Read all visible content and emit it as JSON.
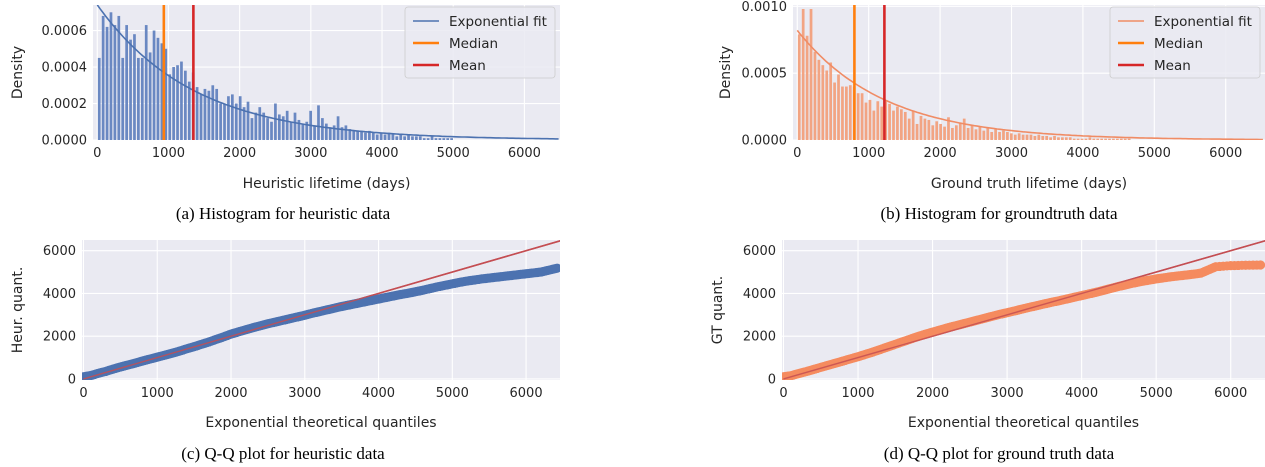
{
  "chart_data": [
    {
      "type": "bar",
      "caption": "(a) Histogram for heuristic data",
      "xlabel": "Heuristic lifetime (days)",
      "ylabel": "Density",
      "xlim": [
        -60,
        6500
      ],
      "ylim": [
        0,
        0.00074
      ],
      "xticks": [
        0,
        1000,
        2000,
        3000,
        4000,
        5000,
        6000
      ],
      "xtick_labels": [
        "0",
        "1000",
        "2000",
        "3000",
        "4000",
        "5000",
        "6000"
      ],
      "yticks": [
        0,
        0.0002,
        0.0004,
        0.0006
      ],
      "ytick_labels": [
        "0.0000",
        "0.0002",
        "0.0004",
        "0.0006"
      ],
      "grid": true,
      "legend_position": "top-right",
      "bar_color": "#6a88c2",
      "bin_width": 55,
      "bin_start": 0,
      "values": [
        0.00045,
        0.00068,
        0.00062,
        0.0007,
        0.00063,
        0.00068,
        0.00045,
        0.00063,
        0.00055,
        0.00058,
        0.00045,
        0.00045,
        0.00063,
        0.00048,
        0.0006,
        0.00056,
        0.00053,
        0.0005,
        0.00036,
        0.0004,
        0.00041,
        0.00043,
        0.00038,
        0.00032,
        0.00037,
        0.00029,
        0.00025,
        0.00028,
        0.00027,
        0.0003,
        0.00028,
        0.0002,
        0.0002,
        0.00024,
        0.00025,
        0.0002,
        0.00024,
        0.00018,
        0.00021,
        0.00012,
        0.00015,
        0.00018,
        0.00015,
        0.00012,
        0.0001,
        0.0002,
        0.00014,
        0.00013,
        0.00016,
        0.0001,
        0.00015,
        0.00011,
        9e-05,
        0.0001,
        0.00016,
        8e-05,
        0.00019,
        0.00012,
        9e-05,
        7e-05,
        8e-05,
        0.00013,
        7e-05,
        8e-05,
        6e-05,
        5e-05,
        5e-05,
        5e-05,
        4e-05,
        5e-05,
        4e-05,
        3e-05,
        4e-05,
        3e-05,
        4e-05,
        3e-05,
        2e-05,
        3e-05,
        2e-05,
        3e-05,
        2e-05,
        2e-05,
        2e-05,
        1e-05,
        1e-05,
        2e-05,
        1e-05,
        1e-05,
        1e-05,
        1e-05,
        1e-05
      ],
      "series": [
        {
          "name": "Exponential fit",
          "kind": "exp_fit",
          "scale": 1350,
          "color": "#4c72b0"
        },
        {
          "name": "Median",
          "kind": "vline",
          "x": 935,
          "color": "#ff7f0e"
        },
        {
          "name": "Mean",
          "kind": "vline",
          "x": 1350,
          "color": "#d62728"
        }
      ]
    },
    {
      "type": "bar",
      "caption": "(b) Histogram for groundtruth data",
      "xlabel": "Ground truth lifetime (days)",
      "ylabel": "Density",
      "xlim": [
        -60,
        6550
      ],
      "ylim": [
        0,
        0.00101
      ],
      "xticks": [
        0,
        1000,
        2000,
        3000,
        4000,
        5000,
        6000
      ],
      "xtick_labels": [
        "0",
        "1000",
        "2000",
        "3000",
        "4000",
        "5000",
        "6000"
      ],
      "yticks": [
        0,
        0.0005,
        0.001
      ],
      "ytick_labels": [
        "0.0000",
        "0.0005",
        "0.0010"
      ],
      "grid": true,
      "legend_position": "top-right",
      "bar_color": "#f2a483",
      "bin_width": 55,
      "bin_start": 0,
      "values": [
        0.00079,
        0.00098,
        0.00078,
        0.00098,
        0.00066,
        0.0006,
        0.00056,
        0.00052,
        0.00058,
        0.00043,
        0.00049,
        0.0004,
        0.0004,
        0.00041,
        0.0004,
        0.00035,
        0.00035,
        0.00028,
        0.0003,
        0.00022,
        0.00029,
        0.00025,
        0.00029,
        0.00027,
        0.00022,
        0.00025,
        0.00023,
        0.00021,
        0.00016,
        0.00022,
        0.00012,
        0.00018,
        0.00016,
        0.00015,
        0.00011,
        0.00014,
        0.00012,
        0.0001,
        0.00017,
        9e-05,
        0.00011,
        0.00013,
        0.00016,
        9e-05,
        0.00011,
        8e-05,
        0.0001,
        7e-05,
        9e-05,
        6e-05,
        8e-05,
        6e-05,
        7e-05,
        6e-05,
        5e-05,
        4e-05,
        5e-05,
        4e-05,
        4e-05,
        4e-05,
        3e-05,
        4e-05,
        3e-05,
        3e-05,
        2e-05,
        3e-05,
        2e-05,
        2e-05,
        2e-05,
        2e-05,
        1e-05,
        1e-05,
        1e-05,
        1e-05,
        2e-05,
        1e-05,
        1e-05,
        1e-05,
        1e-05,
        1e-05,
        1e-05,
        1e-05,
        1e-05,
        1e-05,
        1e-05
      ],
      "series": [
        {
          "name": "Exponential fit",
          "kind": "exp_fit",
          "scale": 1220,
          "color": "#f08c65"
        },
        {
          "name": "Median",
          "kind": "vline",
          "x": 800,
          "color": "#ff7f0e"
        },
        {
          "name": "Mean",
          "kind": "vline",
          "x": 1220,
          "color": "#d62728"
        }
      ]
    },
    {
      "type": "scatter",
      "caption": "(c) Q-Q plot for heuristic data",
      "xlabel": "Exponential theoretical quantiles",
      "ylabel": "Heur. quant.",
      "xlim": [
        -20,
        6460
      ],
      "ylim": [
        -50,
        6500
      ],
      "xticks": [
        0,
        1000,
        2000,
        3000,
        4000,
        5000,
        6000
      ],
      "xtick_labels": [
        "0",
        "1000",
        "2000",
        "3000",
        "4000",
        "5000",
        "6000"
      ],
      "yticks": [
        0,
        2000,
        4000,
        6000
      ],
      "ytick_labels": [
        "0",
        "2000",
        "4000",
        "6000"
      ],
      "grid": true,
      "point_color": "#4c72b0",
      "line_color": "#c44e52",
      "reference_line": [
        [
          0,
          0
        ],
        [
          6500,
          6500
        ]
      ],
      "points": [
        [
          0,
          100
        ],
        [
          100,
          160
        ],
        [
          200,
          260
        ],
        [
          300,
          350
        ],
        [
          400,
          460
        ],
        [
          500,
          560
        ],
        [
          600,
          650
        ],
        [
          700,
          740
        ],
        [
          800,
          840
        ],
        [
          900,
          930
        ],
        [
          1000,
          1020
        ],
        [
          1100,
          1110
        ],
        [
          1200,
          1200
        ],
        [
          1300,
          1300
        ],
        [
          1400,
          1410
        ],
        [
          1500,
          1510
        ],
        [
          1600,
          1620
        ],
        [
          1700,
          1730
        ],
        [
          1800,
          1850
        ],
        [
          1900,
          1970
        ],
        [
          2000,
          2100
        ],
        [
          2100,
          2200
        ],
        [
          2200,
          2300
        ],
        [
          2300,
          2400
        ],
        [
          2400,
          2490
        ],
        [
          2500,
          2580
        ],
        [
          2600,
          2660
        ],
        [
          2700,
          2740
        ],
        [
          2800,
          2820
        ],
        [
          2900,
          2900
        ],
        [
          3000,
          2980
        ],
        [
          3100,
          3070
        ],
        [
          3200,
          3150
        ],
        [
          3300,
          3230
        ],
        [
          3400,
          3310
        ],
        [
          3500,
          3390
        ],
        [
          3600,
          3460
        ],
        [
          3700,
          3530
        ],
        [
          3800,
          3600
        ],
        [
          3900,
          3670
        ],
        [
          4000,
          3740
        ],
        [
          4100,
          3810
        ],
        [
          4200,
          3880
        ],
        [
          4300,
          3950
        ],
        [
          4400,
          4010
        ],
        [
          4500,
          4080
        ],
        [
          4600,
          4150
        ],
        [
          4700,
          4230
        ],
        [
          4800,
          4310
        ],
        [
          4900,
          4380
        ],
        [
          5000,
          4450
        ],
        [
          5100,
          4520
        ],
        [
          5200,
          4580
        ],
        [
          5300,
          4630
        ],
        [
          5400,
          4680
        ],
        [
          5500,
          4720
        ],
        [
          5600,
          4760
        ],
        [
          5700,
          4800
        ],
        [
          5800,
          4840
        ],
        [
          5900,
          4880
        ],
        [
          6000,
          4920
        ],
        [
          6100,
          4960
        ],
        [
          6200,
          5000
        ],
        [
          6300,
          5080
        ],
        [
          6420,
          5180
        ]
      ]
    },
    {
      "type": "scatter",
      "caption": "(d) Q-Q plot for ground truth data",
      "xlabel": "Exponential theoretical quantiles",
      "ylabel": "GT quant.",
      "xlim": [
        -20,
        6460
      ],
      "ylim": [
        -50,
        6500
      ],
      "xticks": [
        0,
        1000,
        2000,
        3000,
        4000,
        5000,
        6000
      ],
      "xtick_labels": [
        "0",
        "1000",
        "2000",
        "3000",
        "4000",
        "5000",
        "6000"
      ],
      "yticks": [
        0,
        2000,
        4000,
        6000
      ],
      "ytick_labels": [
        "0",
        "2000",
        "4000",
        "6000"
      ],
      "grid": true,
      "point_color": "#f58b5f",
      "line_color": "#c44e52",
      "reference_line": [
        [
          0,
          0
        ],
        [
          6500,
          6500
        ]
      ],
      "points": [
        [
          0,
          100
        ],
        [
          100,
          150
        ],
        [
          200,
          250
        ],
        [
          300,
          340
        ],
        [
          400,
          440
        ],
        [
          500,
          540
        ],
        [
          600,
          640
        ],
        [
          700,
          740
        ],
        [
          800,
          840
        ],
        [
          900,
          940
        ],
        [
          1000,
          1040
        ],
        [
          1100,
          1150
        ],
        [
          1200,
          1260
        ],
        [
          1300,
          1380
        ],
        [
          1400,
          1500
        ],
        [
          1500,
          1620
        ],
        [
          1600,
          1740
        ],
        [
          1700,
          1860
        ],
        [
          1800,
          1980
        ],
        [
          1900,
          2090
        ],
        [
          2000,
          2190
        ],
        [
          2100,
          2290
        ],
        [
          2200,
          2390
        ],
        [
          2300,
          2480
        ],
        [
          2400,
          2570
        ],
        [
          2500,
          2660
        ],
        [
          2600,
          2750
        ],
        [
          2700,
          2840
        ],
        [
          2800,
          2930
        ],
        [
          2900,
          3020
        ],
        [
          3000,
          3100
        ],
        [
          3100,
          3180
        ],
        [
          3200,
          3270
        ],
        [
          3300,
          3350
        ],
        [
          3400,
          3430
        ],
        [
          3500,
          3510
        ],
        [
          3600,
          3590
        ],
        [
          3700,
          3660
        ],
        [
          3800,
          3740
        ],
        [
          3900,
          3820
        ],
        [
          4000,
          3900
        ],
        [
          4100,
          3980
        ],
        [
          4200,
          4060
        ],
        [
          4300,
          4150
        ],
        [
          4400,
          4240
        ],
        [
          4500,
          4330
        ],
        [
          4600,
          4410
        ],
        [
          4700,
          4490
        ],
        [
          4800,
          4560
        ],
        [
          4900,
          4620
        ],
        [
          5000,
          4680
        ],
        [
          5100,
          4730
        ],
        [
          5200,
          4780
        ],
        [
          5300,
          4820
        ],
        [
          5400,
          4860
        ],
        [
          5500,
          4900
        ],
        [
          5600,
          4950
        ],
        [
          5700,
          5100
        ],
        [
          5800,
          5250
        ],
        [
          6000,
          5300
        ],
        [
          6200,
          5320
        ],
        [
          6400,
          5330
        ]
      ]
    }
  ]
}
